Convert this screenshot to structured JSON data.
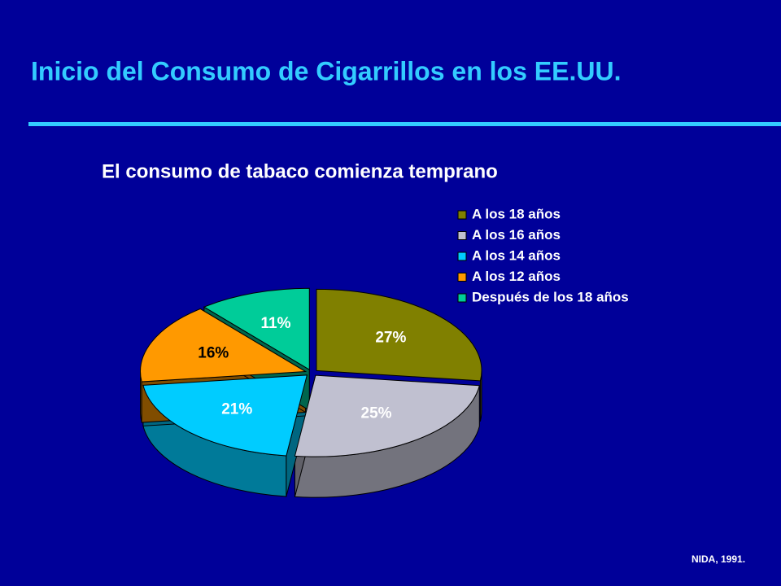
{
  "chart_data": {
    "type": "pie",
    "title": "Inicio del Consumo de Cigarrillos en los EE.UU.",
    "subtitle": "El consumo de tabaco comienza temprano",
    "categories": [
      "A los 18 años",
      "A los 16 años",
      "A los 14 años",
      "A los 12 años",
      "Después de los 18 años"
    ],
    "values": [
      27,
      25,
      21,
      16,
      11
    ],
    "value_labels": [
      "27%",
      "25%",
      "21%",
      "16%",
      "11%"
    ],
    "colors": [
      "#808000",
      "#c0c0d0",
      "#00ccff",
      "#ff9900",
      "#00cc99"
    ],
    "source": "NIDA, 1991."
  }
}
